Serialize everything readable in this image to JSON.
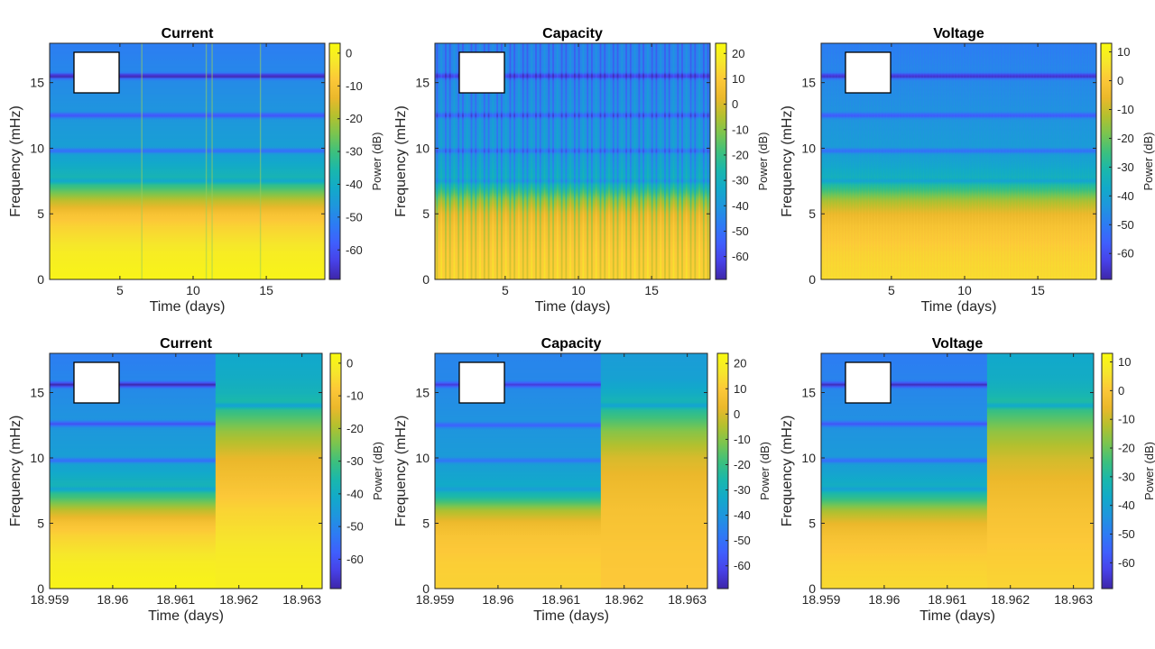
{
  "colors": {
    "colormap": [
      "#3e26a8",
      "#4741e7",
      "#3f5ffd",
      "#2d7bf4",
      "#1f95de",
      "#12a9ca",
      "#19b7ad",
      "#3cc07e",
      "#79c550",
      "#b4c02e",
      "#ebb82b",
      "#fcc838",
      "#f6e72b",
      "#f9fb0e"
    ],
    "frame": "#262626",
    "background": "#ffffff"
  },
  "chart_data": [
    {
      "id": "current-top",
      "type": "heatmap",
      "title": "Current",
      "xlabel": "Time (days)",
      "ylabel": "Frequency (mHz)",
      "colorbar_label": "Power (dB)",
      "x_ticks": [
        "5",
        "10",
        "15"
      ],
      "x_tick_values": [
        5,
        10,
        15
      ],
      "xlim": [
        0.2,
        19.0
      ],
      "y_ticks": [
        "0",
        "5",
        "10",
        "15"
      ],
      "y_tick_values": [
        0,
        5,
        10,
        15
      ],
      "ylim": [
        0,
        18
      ],
      "c_ticks": [
        "0",
        "-10",
        "-20",
        "-30",
        "-40",
        "-50",
        "-60"
      ],
      "c_tick_values": [
        0,
        -10,
        -20,
        -30,
        -40,
        -50,
        -60
      ],
      "clim": [
        -69,
        3
      ],
      "profile": {
        "frequency_mHz": [
          0,
          2,
          4,
          5,
          6,
          7,
          8,
          9,
          10,
          12,
          14,
          16,
          18
        ],
        "power_dB": [
          1,
          -1,
          -6,
          -10,
          -18,
          -30,
          -38,
          -42,
          -44,
          -46,
          -48,
          -50,
          -52
        ]
      },
      "notches": [
        {
          "f": 7.5,
          "depth": -8
        },
        {
          "f": 9.8,
          "depth": -12
        },
        {
          "f": 12.5,
          "depth": -14
        },
        {
          "f": 15.5,
          "depth": -20
        }
      ],
      "stripes": {
        "type": "sparse",
        "times": [
          6.5,
          10.9,
          11.3,
          14.6
        ]
      },
      "white_box": true
    },
    {
      "id": "capacity-top",
      "type": "heatmap",
      "title": "Capacity",
      "xlabel": "Time (days)",
      "ylabel": "Frequency (mHz)",
      "colorbar_label": "Power (dB)",
      "x_ticks": [
        "5",
        "10",
        "15"
      ],
      "x_tick_values": [
        5,
        10,
        15
      ],
      "xlim": [
        0.2,
        19.0
      ],
      "y_ticks": [
        "0",
        "5",
        "10",
        "15"
      ],
      "y_tick_values": [
        0,
        5,
        10,
        15
      ],
      "ylim": [
        0,
        18
      ],
      "c_ticks": [
        "20",
        "10",
        "0",
        "-10",
        "-20",
        "-30",
        "-40",
        "-50",
        "-60"
      ],
      "c_tick_values": [
        20,
        10,
        0,
        -10,
        -20,
        -30,
        -40,
        -50,
        -60
      ],
      "clim": [
        -69,
        24
      ],
      "profile": {
        "frequency_mHz": [
          0,
          2,
          4,
          5,
          6,
          7,
          8,
          9,
          10,
          12,
          14,
          16,
          18
        ],
        "power_dB": [
          12,
          10,
          6,
          2,
          -8,
          -25,
          -33,
          -36,
          -38,
          -40,
          -42,
          -44,
          -45
        ]
      },
      "notches": [
        {
          "f": 7.5,
          "depth": -8
        },
        {
          "f": 9.8,
          "depth": -12
        },
        {
          "f": 12.5,
          "depth": -14
        },
        {
          "f": 15.5,
          "depth": -20
        }
      ],
      "stripes": {
        "type": "dense",
        "count": 64
      },
      "white_box": true
    },
    {
      "id": "voltage-top",
      "type": "heatmap",
      "title": "Voltage",
      "xlabel": "Time (days)",
      "ylabel": "Frequency (mHz)",
      "colorbar_label": "Power (dB)",
      "x_ticks": [
        "5",
        "10",
        "15"
      ],
      "x_tick_values": [
        5,
        10,
        15
      ],
      "xlim": [
        0.2,
        19.0
      ],
      "y_ticks": [
        "0",
        "5",
        "10",
        "15"
      ],
      "y_tick_values": [
        0,
        5,
        10,
        15
      ],
      "ylim": [
        0,
        18
      ],
      "c_ticks": [
        "10",
        "0",
        "-10",
        "-20",
        "-30",
        "-40",
        "-50",
        "-60"
      ],
      "c_tick_values": [
        10,
        0,
        -10,
        -20,
        -30,
        -40,
        -50,
        -60
      ],
      "clim": [
        -69,
        13
      ],
      "profile": {
        "frequency_mHz": [
          0,
          2,
          4,
          5,
          6,
          7,
          8,
          9,
          10,
          12,
          14,
          16,
          18
        ],
        "power_dB": [
          4,
          2,
          -2,
          -6,
          -14,
          -28,
          -36,
          -40,
          -42,
          -44,
          -46,
          -48,
          -50
        ]
      },
      "notches": [
        {
          "f": 7.5,
          "depth": -8
        },
        {
          "f": 9.8,
          "depth": -12
        },
        {
          "f": 12.5,
          "depth": -14
        },
        {
          "f": 15.5,
          "depth": -20
        }
      ],
      "stripes": {
        "type": "faint",
        "count": 90
      },
      "white_box": true
    },
    {
      "id": "current-bottom",
      "type": "heatmap",
      "title": "Current",
      "xlabel": "Time (days)",
      "ylabel": "Frequency (mHz)",
      "colorbar_label": "Power (dB)",
      "x_ticks": [
        "18.959",
        "18.96",
        "18.961",
        "18.962",
        "18.963"
      ],
      "x_tick_values": [
        18.959,
        18.96,
        18.961,
        18.962,
        18.963
      ],
      "xlim": [
        18.959,
        18.96332
      ],
      "y_ticks": [
        "0",
        "5",
        "10",
        "15"
      ],
      "y_tick_values": [
        0,
        5,
        10,
        15
      ],
      "ylim": [
        0,
        18
      ],
      "c_ticks": [
        "0",
        "-10",
        "-20",
        "-30",
        "-40",
        "-50",
        "-60"
      ],
      "c_tick_values": [
        0,
        -10,
        -20,
        -30,
        -40,
        -50,
        -60
      ],
      "clim": [
        -69,
        3
      ],
      "segments": [
        {
          "t_start": 18.959,
          "t_end": 18.96163,
          "profile": {
            "frequency_mHz": [
              0,
              2,
              4,
              5,
              6,
              7,
              8,
              9,
              10,
              12,
              14,
              16,
              18
            ],
            "power_dB": [
              1,
              -1,
              -6,
              -10,
              -18,
              -30,
              -38,
              -42,
              -44,
              -46,
              -48,
              -50,
              -52
            ]
          },
          "notches": [
            {
              "f": 7.6,
              "depth": -8
            },
            {
              "f": 9.8,
              "depth": -12
            },
            {
              "f": 12.6,
              "depth": -14
            },
            {
              "f": 15.6,
              "depth": -20
            }
          ]
        },
        {
          "t_start": 18.96163,
          "t_end": 18.96332,
          "profile": {
            "frequency_mHz": [
              0,
              3,
              6,
              8,
              10,
              12,
              13,
              14,
              15,
              16,
              18
            ],
            "power_dB": [
              0,
              -2,
              -6,
              -10,
              -14,
              -22,
              -28,
              -34,
              -38,
              -40,
              -42
            ]
          },
          "notches": [
            {
              "f": 14.0,
              "depth": -10
            }
          ]
        }
      ],
      "white_box": true
    },
    {
      "id": "capacity-bottom",
      "type": "heatmap",
      "title": "Capacity",
      "xlabel": "Time (days)",
      "ylabel": "Frequency (mHz)",
      "colorbar_label": "Power (dB)",
      "x_ticks": [
        "18.959",
        "18.96",
        "18.961",
        "18.962",
        "18.963"
      ],
      "x_tick_values": [
        18.959,
        18.96,
        18.961,
        18.962,
        18.963
      ],
      "xlim": [
        18.959,
        18.96332
      ],
      "y_ticks": [
        "0",
        "5",
        "10",
        "15"
      ],
      "y_tick_values": [
        0,
        5,
        10,
        15
      ],
      "ylim": [
        0,
        18
      ],
      "c_ticks": [
        "20",
        "10",
        "0",
        "-10",
        "-20",
        "-30",
        "-40",
        "-50",
        "-60"
      ],
      "c_tick_values": [
        20,
        10,
        0,
        -10,
        -20,
        -30,
        -40,
        -50,
        -60
      ],
      "clim": [
        -69,
        24
      ],
      "segments": [
        {
          "t_start": 18.959,
          "t_end": 18.96163,
          "profile": {
            "frequency_mHz": [
              0,
              2,
              4,
              5,
              6,
              7,
              8,
              9,
              10,
              12,
              14,
              16,
              18
            ],
            "power_dB": [
              12,
              11,
              8,
              4,
              -6,
              -25,
              -33,
              -36,
              -38,
              -40,
              -42,
              -44,
              -45
            ]
          },
          "notches": [
            {
              "f": 7.6,
              "depth": -8
            },
            {
              "f": 9.8,
              "depth": -12
            },
            {
              "f": 12.5,
              "depth": -14
            },
            {
              "f": 15.6,
              "depth": -20
            }
          ]
        },
        {
          "t_start": 18.96163,
          "t_end": 18.96332,
          "profile": {
            "frequency_mHz": [
              0,
              3,
              6,
              8,
              10,
              12,
              13,
              14,
              15,
              16,
              18
            ],
            "power_dB": [
              10,
              9,
              7,
              4,
              0,
              -10,
              -18,
              -26,
              -32,
              -36,
              -38
            ]
          },
          "notches": [
            {
              "f": 14.0,
              "depth": -10
            }
          ]
        }
      ],
      "white_box": true
    },
    {
      "id": "voltage-bottom",
      "type": "heatmap",
      "title": "Voltage",
      "xlabel": "Time (days)",
      "ylabel": "Frequency (mHz)",
      "colorbar_label": "Power (dB)",
      "x_ticks": [
        "18.959",
        "18.96",
        "18.961",
        "18.962",
        "18.963"
      ],
      "x_tick_values": [
        18.959,
        18.96,
        18.961,
        18.962,
        18.963
      ],
      "xlim": [
        18.959,
        18.96332
      ],
      "y_ticks": [
        "0",
        "5",
        "10",
        "15"
      ],
      "y_tick_values": [
        0,
        5,
        10,
        15
      ],
      "ylim": [
        0,
        18
      ],
      "c_ticks": [
        "10",
        "0",
        "-10",
        "-20",
        "-30",
        "-40",
        "-50",
        "-60"
      ],
      "c_tick_values": [
        10,
        0,
        -10,
        -20,
        -30,
        -40,
        -50,
        -60
      ],
      "clim": [
        -69,
        13
      ],
      "segments": [
        {
          "t_start": 18.959,
          "t_end": 18.96163,
          "profile": {
            "frequency_mHz": [
              0,
              2,
              4,
              5,
              6,
              7,
              8,
              9,
              10,
              12,
              14,
              16,
              18
            ],
            "power_dB": [
              4,
              2,
              -2,
              -6,
              -14,
              -28,
              -36,
              -40,
              -42,
              -44,
              -46,
              -48,
              -50
            ]
          },
          "notches": [
            {
              "f": 7.6,
              "depth": -8
            },
            {
              "f": 9.8,
              "depth": -12
            },
            {
              "f": 12.6,
              "depth": -14
            },
            {
              "f": 15.6,
              "depth": -20
            }
          ]
        },
        {
          "t_start": 18.96163,
          "t_end": 18.96332,
          "profile": {
            "frequency_mHz": [
              0,
              3,
              6,
              8,
              10,
              12,
              13,
              14,
              15,
              16,
              18
            ],
            "power_dB": [
              3,
              1,
              -2,
              -5,
              -9,
              -16,
              -22,
              -28,
              -33,
              -36,
              -38
            ]
          },
          "notches": [
            {
              "f": 14.0,
              "depth": -10
            }
          ]
        }
      ],
      "white_box": true
    }
  ]
}
